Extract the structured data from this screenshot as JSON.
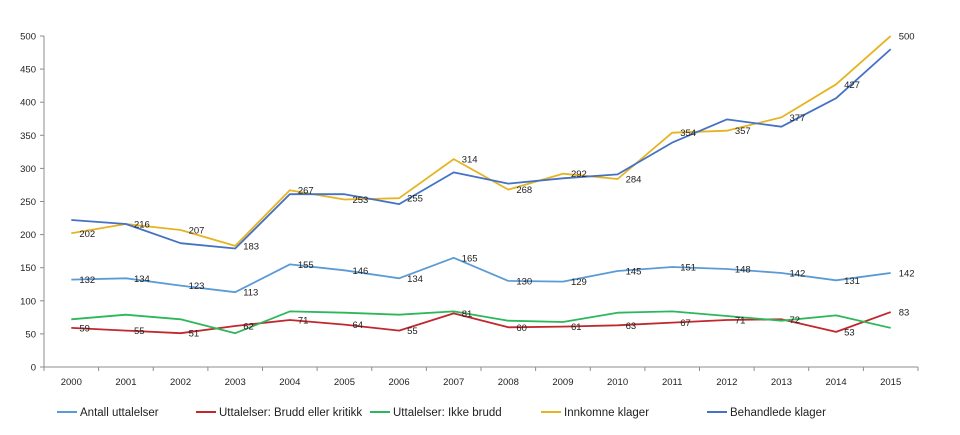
{
  "chart_data": {
    "type": "line",
    "title": "",
    "xlabel": "",
    "ylabel": "",
    "ylim": [
      0,
      500
    ],
    "yticks": [
      0,
      50,
      100,
      150,
      200,
      250,
      300,
      350,
      400,
      450,
      500
    ],
    "categories": [
      "2000",
      "2001",
      "2002",
      "2003",
      "2004",
      "2005",
      "2006",
      "2007",
      "2008",
      "2009",
      "2010",
      "2011",
      "2012",
      "2013",
      "2014",
      "2015"
    ],
    "grid": false,
    "legend_position": "bottom",
    "series": [
      {
        "name": "Antall uttalelser",
        "color": "#5b9bd5",
        "values": [
          132,
          134,
          123,
          113,
          155,
          146,
          134,
          165,
          130,
          129,
          145,
          151,
          148,
          142,
          131,
          142
        ],
        "labels": [
          "132",
          "134",
          "123",
          "113",
          "155",
          "146",
          "134",
          "165",
          "130",
          "129",
          "145",
          "151",
          "148",
          "142",
          "131",
          "142"
        ]
      },
      {
        "name": "Uttalelser: Brudd eller kritikk",
        "color": "#c0282d",
        "values": [
          59,
          55,
          51,
          62,
          71,
          64,
          55,
          81,
          60,
          61,
          63,
          67,
          71,
          72,
          53,
          83
        ],
        "labels": [
          "59",
          "55",
          "51",
          "62",
          "71",
          "64",
          "55",
          "81",
          "60",
          "61",
          "63",
          "67",
          "71",
          "72",
          "53",
          "83"
        ]
      },
      {
        "name": "Uttalelser: Ikke brudd",
        "color": "#2db75b",
        "values": [
          72,
          79,
          72,
          51,
          84,
          82,
          79,
          84,
          70,
          68,
          82,
          84,
          77,
          70,
          78,
          59
        ],
        "labels": null
      },
      {
        "name": "Innkomne klager",
        "color": "#e6b422",
        "values": [
          202,
          216,
          207,
          183,
          267,
          253,
          255,
          314,
          268,
          292,
          284,
          354,
          357,
          377,
          427,
          500
        ],
        "labels": [
          "202",
          "216",
          "207",
          "183",
          "267",
          "253",
          "255",
          "314",
          "268",
          "292",
          "284",
          "354",
          "357",
          "377",
          "427",
          "500"
        ]
      },
      {
        "name": "Behandlede klager",
        "color": "#4472c4",
        "values": [
          222,
          216,
          187,
          179,
          261,
          261,
          246,
          294,
          277,
          285,
          291,
          339,
          374,
          363,
          406,
          480
        ],
        "labels": null
      }
    ]
  }
}
